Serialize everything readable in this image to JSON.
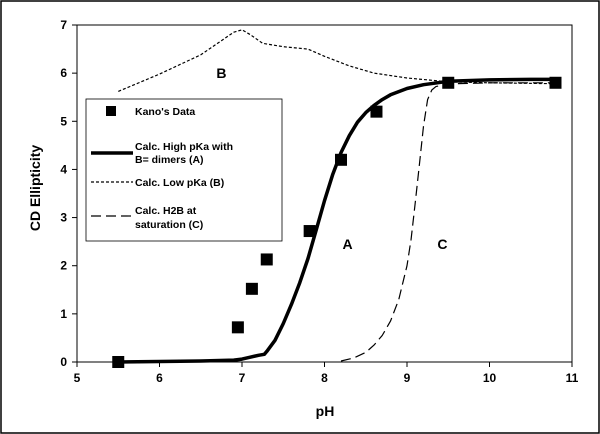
{
  "chart_data": {
    "type": "scatter",
    "xlabel": "pH",
    "ylabel": "CD Ellipticity",
    "xlim": [
      5,
      11
    ],
    "ylim": [
      0,
      7
    ],
    "x_ticks": [
      "5",
      "6",
      "7",
      "8",
      "9",
      "10",
      "11"
    ],
    "y_ticks": [
      "0",
      "1",
      "2",
      "3",
      "4",
      "5",
      "6",
      "7"
    ],
    "grid": false,
    "legend_position": "left",
    "series": [
      {
        "name": "Kano's Data",
        "kind": "markers",
        "marker": "square",
        "x": [
          5.5,
          6.95,
          7.12,
          7.3,
          7.82,
          8.2,
          8.63,
          9.5,
          10.8
        ],
        "y": [
          0.0,
          0.72,
          1.52,
          2.13,
          2.72,
          4.2,
          5.2,
          5.8,
          5.8
        ]
      },
      {
        "name": "Calc. High pKa with B= dimers (A)",
        "kind": "line",
        "style": "solid-thick",
        "x": [
          5.5,
          6.0,
          6.5,
          6.9,
          7.0,
          7.1,
          7.2,
          7.27,
          7.3,
          7.4,
          7.5,
          7.6,
          7.7,
          7.8,
          7.9,
          8.0,
          8.1,
          8.2,
          8.3,
          8.4,
          8.5,
          8.6,
          8.7,
          8.8,
          9.0,
          9.2,
          9.5,
          10.0,
          10.5,
          10.8
        ],
        "y": [
          0.0,
          0.01,
          0.02,
          0.04,
          0.06,
          0.1,
          0.14,
          0.16,
          0.22,
          0.45,
          0.8,
          1.2,
          1.65,
          2.15,
          2.75,
          3.35,
          3.9,
          4.35,
          4.7,
          4.98,
          5.18,
          5.33,
          5.45,
          5.55,
          5.68,
          5.76,
          5.83,
          5.86,
          5.87,
          5.87
        ]
      },
      {
        "name": "Calc. Low pKa (B)",
        "kind": "line",
        "style": "short-dash",
        "x": [
          5.5,
          6.0,
          6.5,
          6.9,
          7.0,
          7.1,
          7.25,
          7.5,
          7.8,
          8.0,
          8.3,
          8.6,
          9.0,
          9.5,
          10.0,
          10.8
        ],
        "y": [
          5.62,
          5.98,
          6.38,
          6.85,
          6.9,
          6.8,
          6.62,
          6.55,
          6.5,
          6.35,
          6.15,
          6.0,
          5.9,
          5.82,
          5.8,
          5.78
        ]
      },
      {
        "name": "Calc. H2B at saturation (C)",
        "kind": "line",
        "style": "long-dash",
        "x": [
          8.2,
          8.35,
          8.5,
          8.6,
          8.7,
          8.8,
          8.9,
          9.0,
          9.05,
          9.1,
          9.15,
          9.2,
          9.25,
          9.3,
          9.35,
          9.45,
          9.6,
          10.0,
          10.5,
          10.8
        ],
        "y": [
          0.02,
          0.08,
          0.2,
          0.35,
          0.55,
          0.85,
          1.3,
          2.0,
          2.55,
          3.3,
          4.1,
          4.9,
          5.45,
          5.65,
          5.72,
          5.76,
          5.78,
          5.8,
          5.8,
          5.8
        ]
      }
    ],
    "annotations": [
      {
        "text": "B",
        "x": 6.75,
        "y": 6.0
      },
      {
        "text": "A",
        "x": 8.28,
        "y": 2.45
      },
      {
        "text": "C",
        "x": 9.43,
        "y": 2.45
      }
    ]
  }
}
